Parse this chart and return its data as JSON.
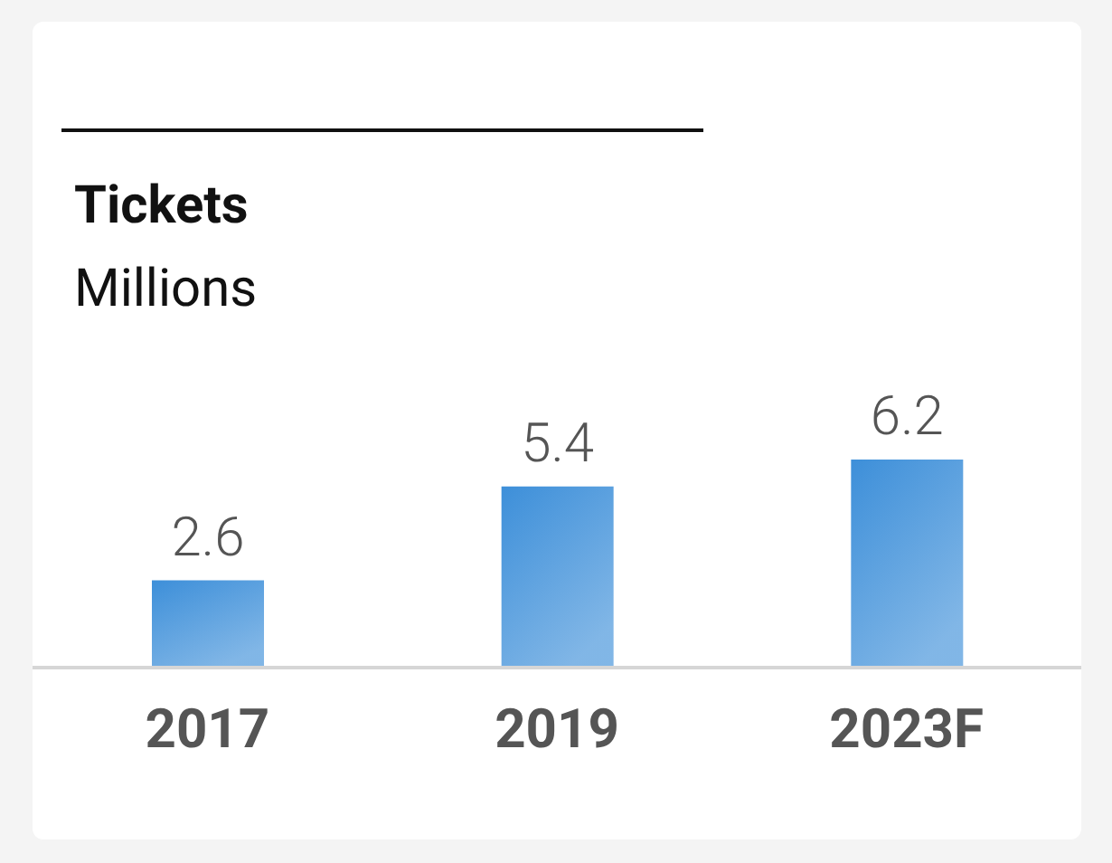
{
  "chart_data": {
    "type": "bar",
    "title": "Tickets",
    "subtitle": "Millions",
    "categories": [
      "2017",
      "2019",
      "2023F"
    ],
    "values": [
      2.6,
      5.4,
      6.2
    ],
    "color": "#3d8fd9",
    "data_labels": true,
    "grid": false,
    "legend": false
  }
}
